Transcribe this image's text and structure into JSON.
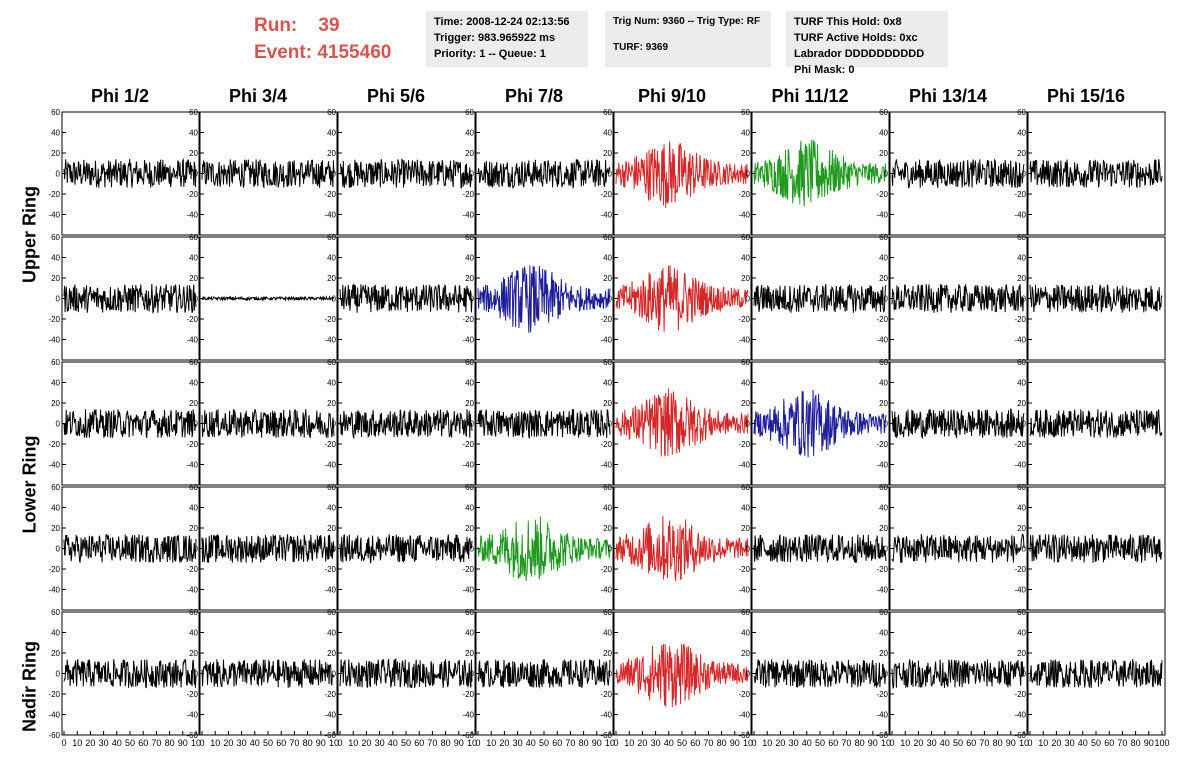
{
  "run_label": "Run:",
  "run_value": "39",
  "event_label": "Event:",
  "event_value": "4155460",
  "time_box": {
    "time": "Time: 2008-12-24 02:13:56",
    "trigger": "Trigger: 983.965922 ms",
    "priority": "Priority: 1 -- Queue: 1"
  },
  "trig_box": {
    "trig": "Trig Num: 9360 -- Trig Type: RF",
    "turf": "TURF: 9369"
  },
  "turf_box": {
    "hold": "TURF This Hold: 0x8",
    "active": "TURF Active Holds: 0xc",
    "labrador": "Labrador DDDDDDDDDD",
    "phimask": "Phi Mask: 0"
  },
  "columns": [
    "Phi 1/2",
    "Phi 3/4",
    "Phi 5/6",
    "Phi 7/8",
    "Phi 9/10",
    "Phi 11/12",
    "Phi 13/14",
    "Phi 15/16"
  ],
  "row_labels": {
    "upper": "Upper Ring",
    "lower": "Lower Ring",
    "nadir": "Nadir Ring"
  },
  "colors": {
    "black": "#000000",
    "red": "#d62728",
    "blue": "#1f1f9c",
    "green": "#1f9a1f"
  },
  "trace_colors": [
    [
      "black",
      "black",
      "black",
      "black",
      "red",
      "green",
      "black",
      "black"
    ],
    [
      "black",
      "black",
      "black",
      "blue",
      "red",
      "black",
      "black",
      "black"
    ],
    [
      "black",
      "black",
      "black",
      "black",
      "red",
      "blue",
      "black",
      "black"
    ],
    [
      "black",
      "black",
      "black",
      "green",
      "red",
      "black",
      "black",
      "black"
    ],
    [
      "black",
      "black",
      "black",
      "black",
      "red",
      "black",
      "black",
      "black"
    ]
  ],
  "chart_data": {
    "type": "line",
    "description_rows": [
      "Upper Ring (top)",
      "Upper Ring (bottom)",
      "Lower Ring (top)",
      "Lower Ring (bottom)",
      "Nadir Ring"
    ],
    "ylim": [
      -60,
      60
    ],
    "xlim": [
      0,
      100
    ],
    "y_ticks": [
      -60,
      -40,
      -20,
      0,
      20,
      40,
      60
    ],
    "x_ticks": [
      0,
      10,
      20,
      30,
      40,
      50,
      60,
      70,
      80,
      90,
      100
    ],
    "x_tick_labels_visible": "0 10 20 30 40 50 60 70 80 90 10",
    "last_x_tick_label": "100"
  }
}
